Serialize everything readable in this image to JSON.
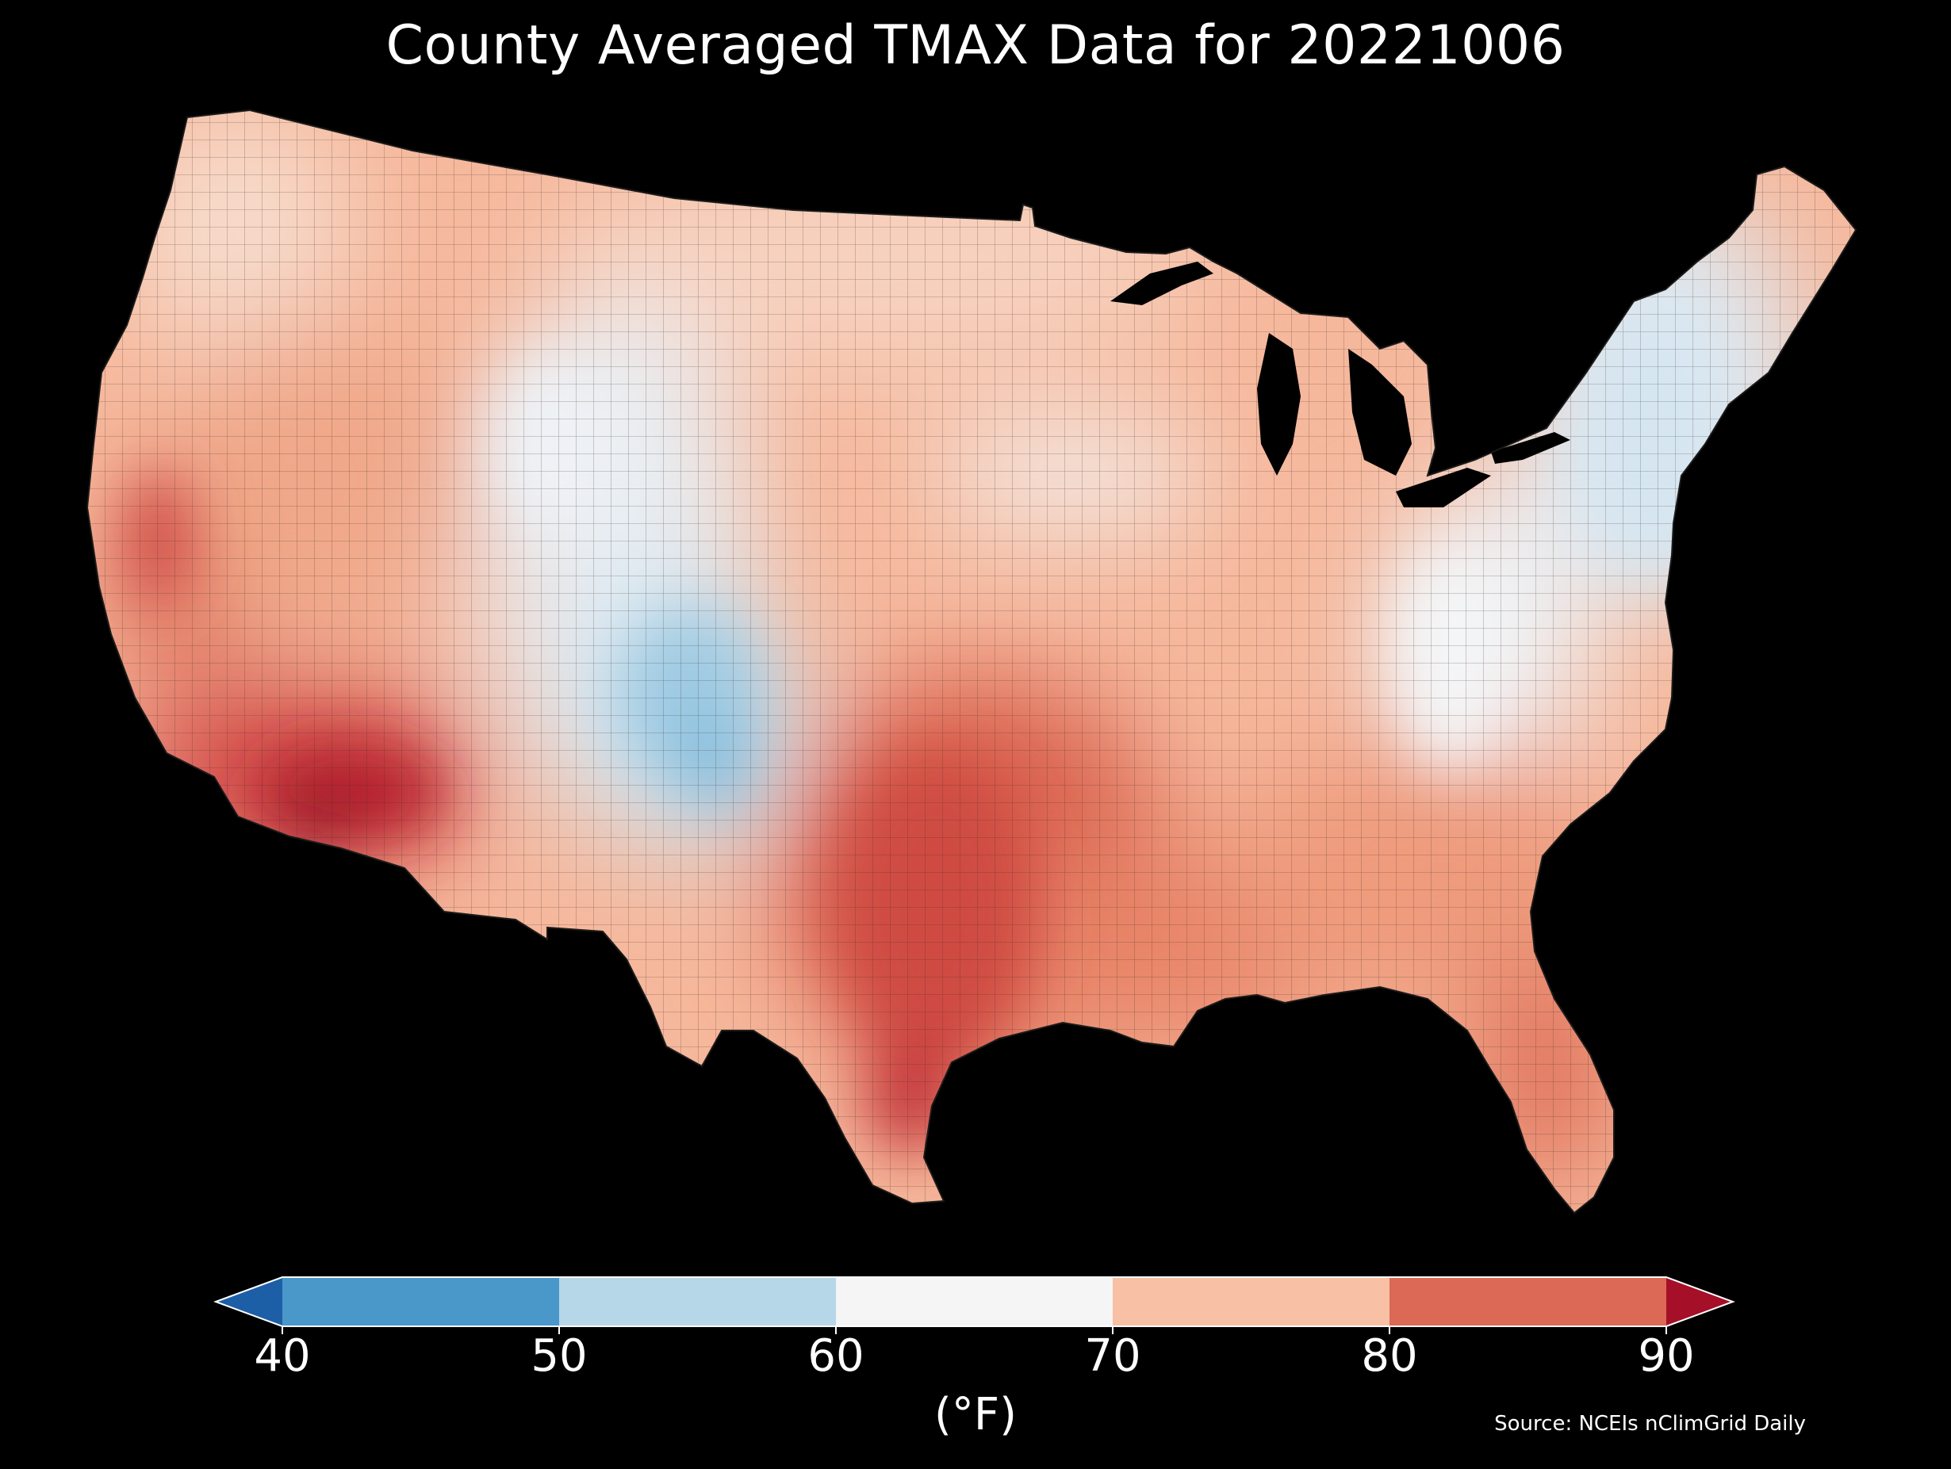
{
  "title": "County Averaged TMAX Data for 20221006",
  "source": "Source: NCEIs nClimGrid Daily",
  "colorbar": {
    "unit": "(°F)",
    "ticks": [
      "40",
      "50",
      "60",
      "70",
      "80",
      "90"
    ],
    "bins": [
      {
        "from": 40,
        "to": 50,
        "color": "#4a97c9"
      },
      {
        "from": 50,
        "to": 60,
        "color": "#b6d7e8"
      },
      {
        "from": 60,
        "to": 70,
        "color": "#f5f5f5"
      },
      {
        "from": 70,
        "to": 80,
        "color": "#f8c0a5"
      },
      {
        "from": 80,
        "to": 90,
        "color": "#dc6956"
      }
    ],
    "under_color": "#1d5fa6",
    "over_color": "#a50f28"
  },
  "colors": {
    "background": "#000000",
    "water": "#000000",
    "border": "#ffffff"
  }
}
